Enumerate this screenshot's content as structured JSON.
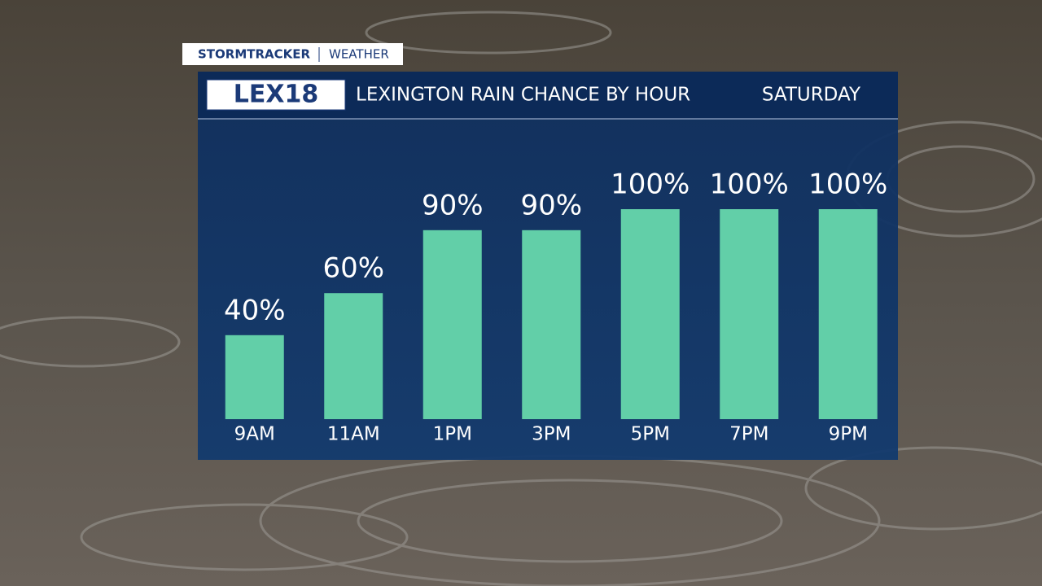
{
  "header": {
    "brand": "StormTracker",
    "section": "WEATHER",
    "logo": "LEX18"
  },
  "chart_data": {
    "type": "bar",
    "title": "LEXINGTON RAIN CHANCE BY HOUR",
    "subtitle": "SATURDAY",
    "categories": [
      "9AM",
      "11AM",
      "1PM",
      "3PM",
      "5PM",
      "7PM",
      "9PM"
    ],
    "values": [
      40,
      60,
      90,
      90,
      100,
      100,
      100
    ],
    "value_labels": [
      "40%",
      "60%",
      "90%",
      "90%",
      "100%",
      "100%",
      "100%"
    ],
    "color": "#62cfa8"
  }
}
